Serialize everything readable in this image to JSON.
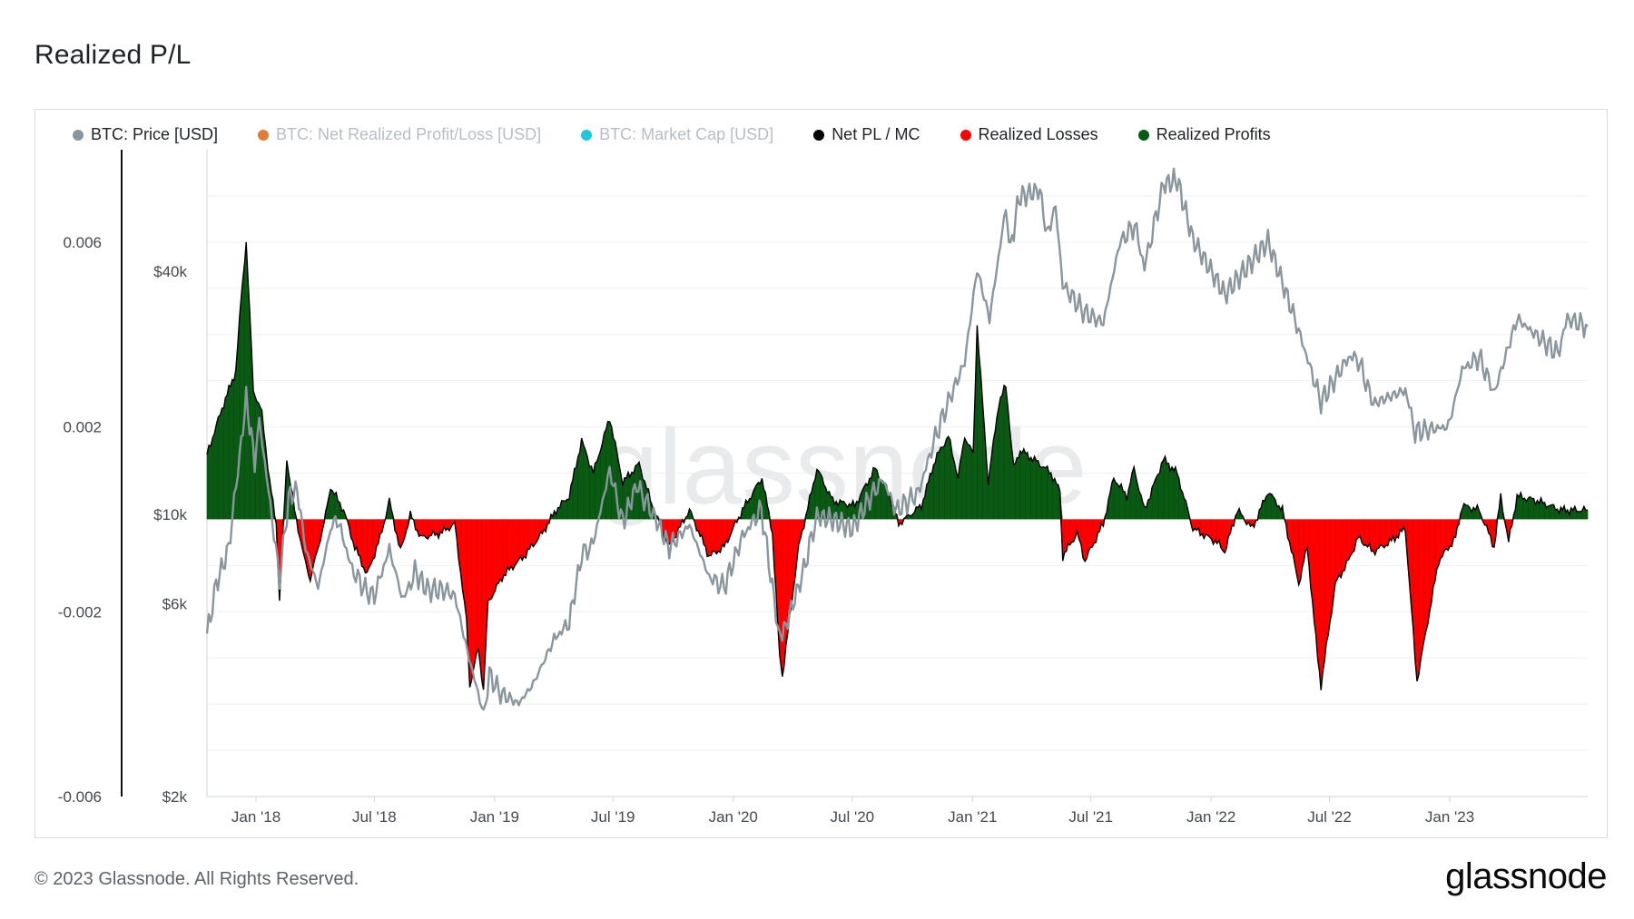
{
  "page": {
    "title": "Realized P/L",
    "footer": "© 2023 Glassnode. All Rights Reserved.",
    "brand": "glassnode",
    "watermark": "glassnode"
  },
  "legend": [
    {
      "label": "BTC: Price [USD]",
      "color": "#8a969e",
      "active": true
    },
    {
      "label": "BTC: Net Realized Profit/Loss [USD]",
      "color": "#e07b3a",
      "active": false
    },
    {
      "label": "BTC: Market Cap [USD]",
      "color": "#1ec9e0",
      "active": false
    },
    {
      "label": "Net PL / MC",
      "color": "#000000",
      "active": true
    },
    {
      "label": "Realized Losses",
      "color": "#ff0000",
      "active": true
    },
    {
      "label": "Realized Profits",
      "color": "#0a5a14",
      "active": true
    }
  ],
  "chart_data": {
    "type": "area",
    "title": "Realized P/L",
    "x_ticks": [
      "Jan '18",
      "Jul '18",
      "Jan '19",
      "Jul '19",
      "Jan '20",
      "Jul '20",
      "Jan '21",
      "Jul '21",
      "Jan '22",
      "Jul '22",
      "Jan '23"
    ],
    "x_tick_dates": [
      "2018-01-01",
      "2018-07-01",
      "2019-01-01",
      "2019-07-01",
      "2020-01-01",
      "2020-07-01",
      "2021-01-01",
      "2021-07-01",
      "2022-01-01",
      "2022-07-01",
      "2023-01-01"
    ],
    "x_range": [
      "2017-10-18",
      "2023-07-31"
    ],
    "left_axis": {
      "ticks": [
        "0.006",
        "0.002",
        "-0.002",
        "-0.006"
      ],
      "tick_values": [
        0.006,
        0.002,
        -0.002,
        -0.006
      ],
      "range": [
        -0.006,
        0.008
      ]
    },
    "right_axis": {
      "ticks": [
        "$40k",
        "$10k",
        "$6k",
        "$2k"
      ],
      "tick_values": [
        40000,
        10000,
        6000,
        2000
      ],
      "scale": "log",
      "range": [
        2000,
        80000
      ]
    },
    "colors": {
      "price": "#8a969e",
      "profit": "#0a5a14",
      "loss": "#ff0000",
      "netpl_line": "#000000"
    },
    "series": [
      {
        "name": "BTC: Price [USD]",
        "axis": "right",
        "points": [
          [
            "2017-10-18",
            5000
          ],
          [
            "2017-11-01",
            6700
          ],
          [
            "2017-11-20",
            8200
          ],
          [
            "2017-12-07",
            14000
          ],
          [
            "2017-12-17",
            19300
          ],
          [
            "2017-12-30",
            13500
          ],
          [
            "2018-01-06",
            17000
          ],
          [
            "2018-01-20",
            11500
          ],
          [
            "2018-02-06",
            6900
          ],
          [
            "2018-02-20",
            11000
          ],
          [
            "2018-03-05",
            11500
          ],
          [
            "2018-03-18",
            8200
          ],
          [
            "2018-04-06",
            6600
          ],
          [
            "2018-04-25",
            9200
          ],
          [
            "2018-05-05",
            9800
          ],
          [
            "2018-05-28",
            7300
          ],
          [
            "2018-06-20",
            6400
          ],
          [
            "2018-07-01",
            6300
          ],
          [
            "2018-07-24",
            8200
          ],
          [
            "2018-08-14",
            6100
          ],
          [
            "2018-09-01",
            7200
          ],
          [
            "2018-09-20",
            6500
          ],
          [
            "2018-10-15",
            6500
          ],
          [
            "2018-11-01",
            6300
          ],
          [
            "2018-11-20",
            4600
          ],
          [
            "2018-12-15",
            3200
          ],
          [
            "2018-12-24",
            4000
          ],
          [
            "2019-01-10",
            3600
          ],
          [
            "2019-02-07",
            3400
          ],
          [
            "2019-03-01",
            3800
          ],
          [
            "2019-04-02",
            4900
          ],
          [
            "2019-04-25",
            5400
          ],
          [
            "2019-05-14",
            7900
          ],
          [
            "2019-06-01",
            8500
          ],
          [
            "2019-06-26",
            12900
          ],
          [
            "2019-07-16",
            9500
          ],
          [
            "2019-08-06",
            11800
          ],
          [
            "2019-09-01",
            10000
          ],
          [
            "2019-09-25",
            8300
          ],
          [
            "2019-10-26",
            9400
          ],
          [
            "2019-11-25",
            7000
          ],
          [
            "2019-12-18",
            6600
          ],
          [
            "2020-01-15",
            8800
          ],
          [
            "2020-02-13",
            10300
          ],
          [
            "2020-03-12",
            4900
          ],
          [
            "2020-03-16",
            5000
          ],
          [
            "2020-04-15",
            7000
          ],
          [
            "2020-05-08",
            9900
          ],
          [
            "2020-06-01",
            9700
          ],
          [
            "2020-07-01",
            9200
          ],
          [
            "2020-07-28",
            11000
          ],
          [
            "2020-08-17",
            12200
          ],
          [
            "2020-09-06",
            10200
          ],
          [
            "2020-10-10",
            11300
          ],
          [
            "2020-11-05",
            15500
          ],
          [
            "2020-11-25",
            19000
          ],
          [
            "2020-12-20",
            23800
          ],
          [
            "2021-01-08",
            40500
          ],
          [
            "2021-01-27",
            30500
          ],
          [
            "2021-02-21",
            57500
          ],
          [
            "2021-02-28",
            45000
          ],
          [
            "2021-03-13",
            61000
          ],
          [
            "2021-04-14",
            63500
          ],
          [
            "2021-04-25",
            49000
          ],
          [
            "2021-05-08",
            58000
          ],
          [
            "2021-05-19",
            37000
          ],
          [
            "2021-06-22",
            31500
          ],
          [
            "2021-07-20",
            29800
          ],
          [
            "2021-08-14",
            47000
          ],
          [
            "2021-09-06",
            52000
          ],
          [
            "2021-09-21",
            41000
          ],
          [
            "2021-10-20",
            65500
          ],
          [
            "2021-11-10",
            67500
          ],
          [
            "2021-12-04",
            48000
          ],
          [
            "2022-01-22",
            35000
          ],
          [
            "2022-03-29",
            47500
          ],
          [
            "2022-05-09",
            30500
          ],
          [
            "2022-06-18",
            19000
          ],
          [
            "2022-07-30",
            24500
          ],
          [
            "2022-08-14",
            24200
          ],
          [
            "2022-09-06",
            18800
          ],
          [
            "2022-10-25",
            20300
          ],
          [
            "2022-11-09",
            16000
          ],
          [
            "2022-12-30",
            16500
          ],
          [
            "2023-01-20",
            22800
          ],
          [
            "2023-02-15",
            24500
          ],
          [
            "2023-03-10",
            20000
          ],
          [
            "2023-04-14",
            30500
          ],
          [
            "2023-06-15",
            25000
          ],
          [
            "2023-06-30",
            30500
          ],
          [
            "2023-07-31",
            29200
          ]
        ]
      },
      {
        "name": "Net PL / MC",
        "axis": "left",
        "points": [
          [
            "2017-10-18",
            0.0014
          ],
          [
            "2017-11-10",
            0.0024
          ],
          [
            "2017-12-01",
            0.0032
          ],
          [
            "2017-12-10",
            0.0049
          ],
          [
            "2017-12-17",
            0.006
          ],
          [
            "2017-12-28",
            0.0028
          ],
          [
            "2018-01-10",
            0.0023
          ],
          [
            "2018-01-22",
            0.0008
          ],
          [
            "2018-02-01",
            -0.0001
          ],
          [
            "2018-02-06",
            -0.0018
          ],
          [
            "2018-02-17",
            0.0013
          ],
          [
            "2018-03-01",
            0.0002
          ],
          [
            "2018-03-15",
            -0.0008
          ],
          [
            "2018-03-25",
            -0.0013
          ],
          [
            "2018-04-15",
            -0.0001
          ],
          [
            "2018-04-25",
            0.0007
          ],
          [
            "2018-05-15",
            0.0002
          ],
          [
            "2018-06-01",
            -0.0006
          ],
          [
            "2018-06-20",
            -0.0012
          ],
          [
            "2018-07-10",
            -0.0004
          ],
          [
            "2018-07-24",
            0.0004
          ],
          [
            "2018-08-10",
            -0.0007
          ],
          [
            "2018-08-25",
            0.0001
          ],
          [
            "2018-09-10",
            -0.0004
          ],
          [
            "2018-10-10",
            -0.0003
          ],
          [
            "2018-11-01",
            -0.0001
          ],
          [
            "2018-11-19",
            -0.0022
          ],
          [
            "2018-11-24",
            -0.0036
          ],
          [
            "2018-12-07",
            -0.0028
          ],
          [
            "2018-12-15",
            -0.0037
          ],
          [
            "2018-12-22",
            -0.0018
          ],
          [
            "2019-01-15",
            -0.0012
          ],
          [
            "2019-02-15",
            -0.0008
          ],
          [
            "2019-03-15",
            -0.0003
          ],
          [
            "2019-04-05",
            0.0002
          ],
          [
            "2019-04-25",
            0.0005
          ],
          [
            "2019-05-14",
            0.0017
          ],
          [
            "2019-06-01",
            0.001
          ],
          [
            "2019-06-26",
            0.0022
          ],
          [
            "2019-07-16",
            0.0008
          ],
          [
            "2019-08-10",
            0.0012
          ],
          [
            "2019-08-30",
            0.0003
          ],
          [
            "2019-09-25",
            -0.0006
          ],
          [
            "2019-10-26",
            0.0002
          ],
          [
            "2019-11-25",
            -0.0008
          ],
          [
            "2019-12-18",
            -0.0006
          ],
          [
            "2020-01-15",
            0.0002
          ],
          [
            "2020-02-14",
            0.0009
          ],
          [
            "2020-03-01",
            -0.0003
          ],
          [
            "2020-03-12",
            -0.003
          ],
          [
            "2020-03-16",
            -0.0034
          ],
          [
            "2020-04-10",
            -0.0006
          ],
          [
            "2020-05-08",
            0.0011
          ],
          [
            "2020-06-01",
            0.0004
          ],
          [
            "2020-07-05",
            0.0003
          ],
          [
            "2020-08-05",
            0.0011
          ],
          [
            "2020-08-25",
            0.0006
          ],
          [
            "2020-09-10",
            -0.0001
          ],
          [
            "2020-10-15",
            0.0003
          ],
          [
            "2020-11-05",
            0.0013
          ],
          [
            "2020-11-25",
            0.0018
          ],
          [
            "2020-12-10",
            0.0009
          ],
          [
            "2020-12-20",
            0.0018
          ],
          [
            "2021-01-02",
            0.0014
          ],
          [
            "2021-01-08",
            0.0042
          ],
          [
            "2021-01-25",
            0.0008
          ],
          [
            "2021-02-10",
            0.0025
          ],
          [
            "2021-02-21",
            0.0029
          ],
          [
            "2021-03-05",
            0.0011
          ],
          [
            "2021-03-15",
            0.0015
          ],
          [
            "2021-04-14",
            0.0012
          ],
          [
            "2021-05-01",
            0.001
          ],
          [
            "2021-05-15",
            0.0006
          ],
          [
            "2021-05-19",
            -0.0008
          ],
          [
            "2021-06-10",
            -0.0003
          ],
          [
            "2021-06-22",
            -0.0009
          ],
          [
            "2021-07-20",
            -0.0001
          ],
          [
            "2021-08-05",
            0.0009
          ],
          [
            "2021-08-25",
            0.0005
          ],
          [
            "2021-09-05",
            0.0011
          ],
          [
            "2021-09-21",
            0.0002
          ],
          [
            "2021-10-20",
            0.0013
          ],
          [
            "2021-11-10",
            0.001
          ],
          [
            "2021-12-04",
            -0.0002
          ],
          [
            "2022-01-10",
            -0.0005
          ],
          [
            "2022-01-22",
            -0.0007
          ],
          [
            "2022-02-10",
            0.0002
          ],
          [
            "2022-03-05",
            -0.0002
          ],
          [
            "2022-03-29",
            0.0006
          ],
          [
            "2022-04-20",
            0.0002
          ],
          [
            "2022-05-09",
            -0.001
          ],
          [
            "2022-05-15",
            -0.0014
          ],
          [
            "2022-05-28",
            -0.0006
          ],
          [
            "2022-06-13",
            -0.003
          ],
          [
            "2022-06-18",
            -0.0036
          ],
          [
            "2022-07-10",
            -0.0014
          ],
          [
            "2022-07-30",
            -0.0009
          ],
          [
            "2022-08-14",
            -0.0004
          ],
          [
            "2022-09-06",
            -0.0007
          ],
          [
            "2022-10-01",
            -0.0005
          ],
          [
            "2022-10-25",
            -0.0002
          ],
          [
            "2022-11-09",
            -0.003
          ],
          [
            "2022-11-12",
            -0.0035
          ],
          [
            "2022-12-15",
            -0.0009
          ],
          [
            "2023-01-10",
            -0.0004
          ],
          [
            "2023-01-20",
            0.0003
          ],
          [
            "2023-02-15",
            0.0002
          ],
          [
            "2023-03-10",
            -0.0006
          ],
          [
            "2023-03-20",
            0.0005
          ],
          [
            "2023-04-01",
            -0.0005
          ],
          [
            "2023-04-14",
            0.0005
          ],
          [
            "2023-05-15",
            0.0004
          ],
          [
            "2023-06-20",
            0.0002
          ],
          [
            "2023-06-30",
            0.0002
          ],
          [
            "2023-07-31",
            0.0002
          ]
        ]
      }
    ]
  }
}
